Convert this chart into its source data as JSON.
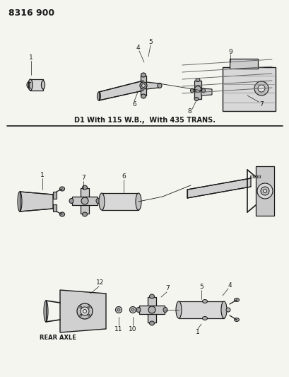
{
  "bg_color": "#f5f5f0",
  "line_color": "#1a1a1a",
  "text_color": "#1a1a1a",
  "title": "8316 900",
  "separator_text": "D1 With 115 W.B.,  With 435 TRANS.",
  "rear_axle_label": "REAR AXLE",
  "figsize": [
    4.1,
    5.33
  ],
  "dpi": 100
}
